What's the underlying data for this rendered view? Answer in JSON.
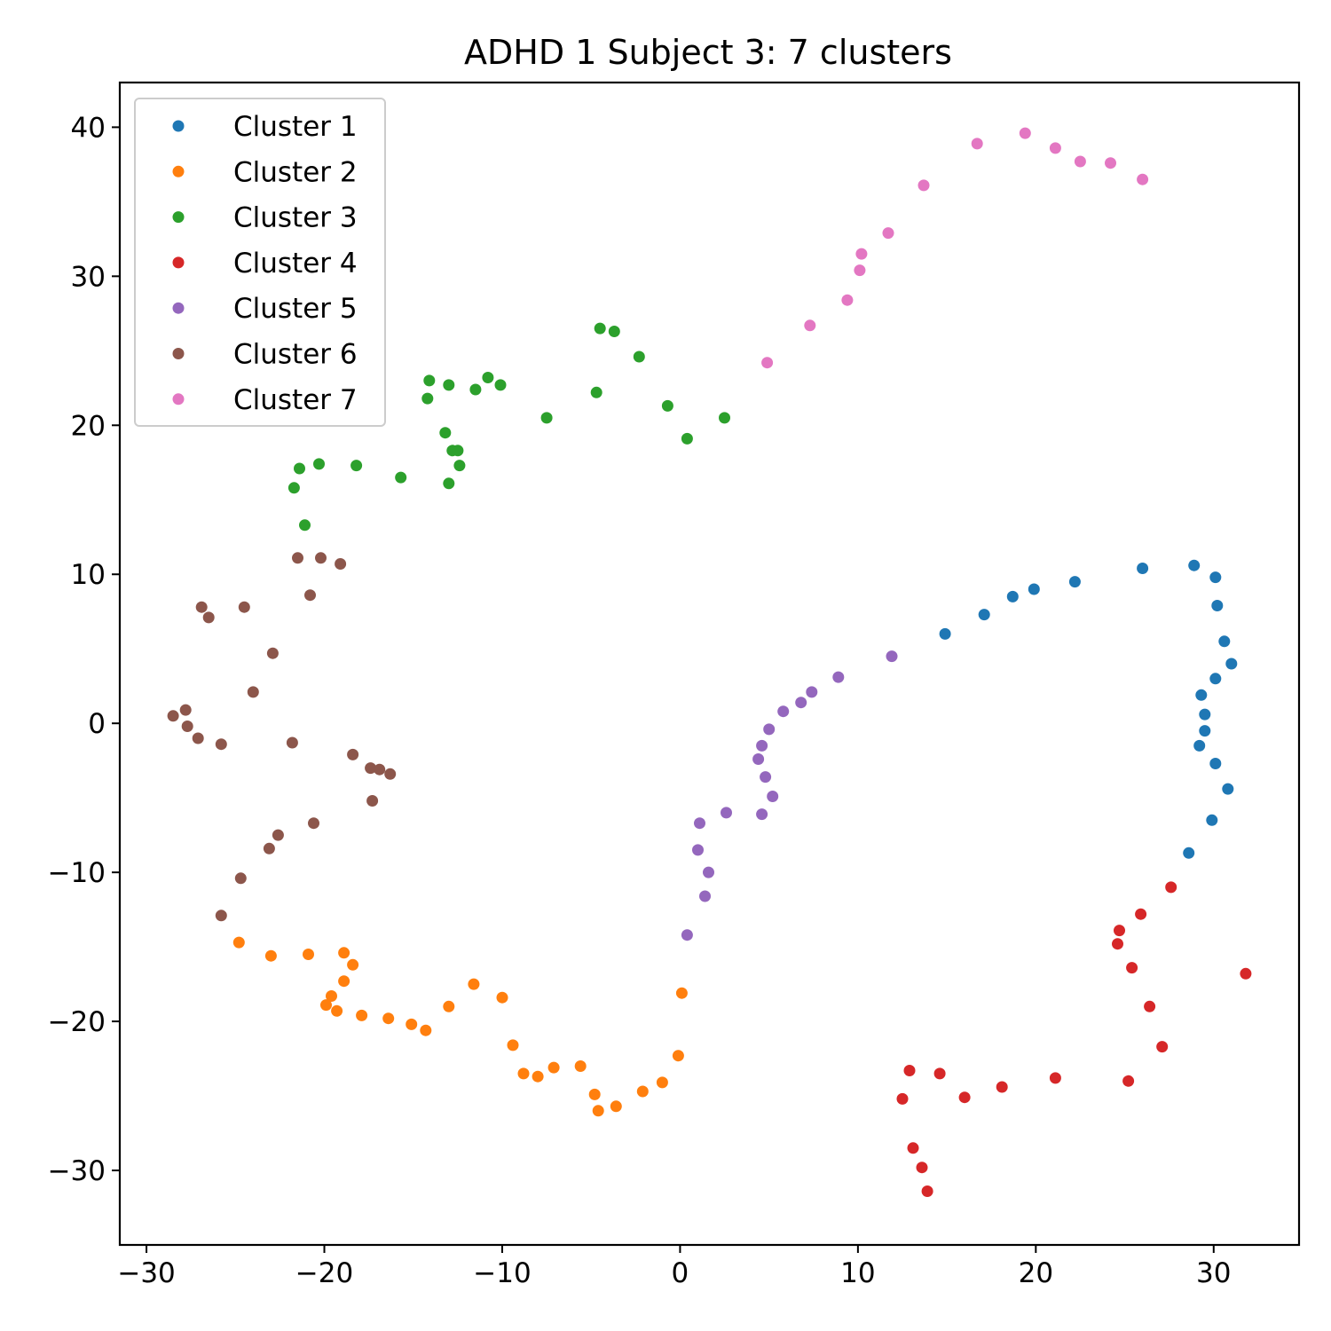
{
  "chart_data": {
    "type": "scatter",
    "title": "ADHD 1 Subject 3: 7 clusters",
    "xlabel": "",
    "ylabel": "",
    "xlim": [
      -31.5,
      34.8
    ],
    "ylim": [
      -35,
      43
    ],
    "xticks": [
      -30,
      -20,
      -10,
      0,
      10,
      20,
      30
    ],
    "yticks": [
      -30,
      -20,
      -10,
      0,
      10,
      20,
      30,
      40
    ],
    "xtick_labels": [
      "−30",
      "−20",
      "−10",
      "0",
      "10",
      "20",
      "30"
    ],
    "ytick_labels": [
      "−30",
      "−20",
      "−10",
      "0",
      "10",
      "20",
      "30",
      "40"
    ],
    "grid": false,
    "legend_position": "upper-left",
    "series": [
      {
        "name": "Cluster 1",
        "color": "#1f77b4",
        "points": [
          [
            26.0,
            10.4
          ],
          [
            28.9,
            10.6
          ],
          [
            30.1,
            9.8
          ],
          [
            22.2,
            9.5
          ],
          [
            19.9,
            9.0
          ],
          [
            18.7,
            8.5
          ],
          [
            30.2,
            7.9
          ],
          [
            17.1,
            7.3
          ],
          [
            14.9,
            6.0
          ],
          [
            30.6,
            5.5
          ],
          [
            31.0,
            4.0
          ],
          [
            30.1,
            3.0
          ],
          [
            29.3,
            1.9
          ],
          [
            29.5,
            0.6
          ],
          [
            29.5,
            -0.5
          ],
          [
            29.2,
            -1.5
          ],
          [
            30.1,
            -2.7
          ],
          [
            30.8,
            -4.4
          ],
          [
            29.9,
            -6.5
          ],
          [
            28.6,
            -8.7
          ]
        ]
      },
      {
        "name": "Cluster 2",
        "color": "#ff7f0e",
        "points": [
          [
            -24.8,
            -14.7
          ],
          [
            -23.0,
            -15.6
          ],
          [
            -20.9,
            -15.5
          ],
          [
            -18.9,
            -15.4
          ],
          [
            -18.4,
            -16.2
          ],
          [
            -18.9,
            -17.3
          ],
          [
            -11.6,
            -17.5
          ],
          [
            -19.6,
            -18.3
          ],
          [
            -19.9,
            -18.9
          ],
          [
            -19.3,
            -19.3
          ],
          [
            -17.9,
            -19.6
          ],
          [
            -13.0,
            -19.0
          ],
          [
            -10.0,
            -18.4
          ],
          [
            0.1,
            -18.1
          ],
          [
            -16.4,
            -19.8
          ],
          [
            -15.1,
            -20.2
          ],
          [
            -14.3,
            -20.6
          ],
          [
            -9.4,
            -21.6
          ],
          [
            -0.1,
            -22.3
          ],
          [
            -5.6,
            -23.0
          ],
          [
            -7.1,
            -23.1
          ],
          [
            -8.8,
            -23.5
          ],
          [
            -8.0,
            -23.7
          ],
          [
            -1.0,
            -24.1
          ],
          [
            -2.1,
            -24.7
          ],
          [
            -4.8,
            -24.9
          ],
          [
            -3.6,
            -25.7
          ],
          [
            -4.6,
            -26.0
          ]
        ]
      },
      {
        "name": "Cluster 3",
        "color": "#2ca02c",
        "points": [
          [
            -4.5,
            26.5
          ],
          [
            -3.7,
            26.3
          ],
          [
            -2.3,
            24.6
          ],
          [
            -10.8,
            23.2
          ],
          [
            -14.1,
            23.0
          ],
          [
            -13.0,
            22.7
          ],
          [
            -10.1,
            22.7
          ],
          [
            -11.5,
            22.4
          ],
          [
            -4.7,
            22.2
          ],
          [
            -14.2,
            21.8
          ],
          [
            -0.7,
            21.3
          ],
          [
            -7.5,
            20.5
          ],
          [
            2.5,
            20.5
          ],
          [
            -13.2,
            19.5
          ],
          [
            0.4,
            19.1
          ],
          [
            -12.8,
            18.3
          ],
          [
            -12.5,
            18.3
          ],
          [
            -20.3,
            17.4
          ],
          [
            -18.2,
            17.3
          ],
          [
            -12.4,
            17.3
          ],
          [
            -21.4,
            17.1
          ],
          [
            -15.7,
            16.5
          ],
          [
            -13.0,
            16.1
          ],
          [
            -21.7,
            15.8
          ],
          [
            -21.1,
            13.3
          ]
        ]
      },
      {
        "name": "Cluster 4",
        "color": "#d62728",
        "points": [
          [
            27.6,
            -11.0
          ],
          [
            25.9,
            -12.8
          ],
          [
            24.7,
            -13.9
          ],
          [
            24.6,
            -14.8
          ],
          [
            31.8,
            -16.8
          ],
          [
            25.4,
            -16.4
          ],
          [
            26.4,
            -19.0
          ],
          [
            27.1,
            -21.7
          ],
          [
            12.9,
            -23.3
          ],
          [
            14.6,
            -23.5
          ],
          [
            21.1,
            -23.8
          ],
          [
            25.2,
            -24.0
          ],
          [
            18.1,
            -24.4
          ],
          [
            16.0,
            -25.1
          ],
          [
            12.5,
            -25.2
          ],
          [
            13.1,
            -28.5
          ],
          [
            13.6,
            -29.8
          ],
          [
            13.9,
            -31.4
          ]
        ]
      },
      {
        "name": "Cluster 5",
        "color": "#9467bd",
        "points": [
          [
            11.9,
            4.5
          ],
          [
            8.9,
            3.1
          ],
          [
            7.4,
            2.1
          ],
          [
            6.8,
            1.4
          ],
          [
            5.8,
            0.8
          ],
          [
            5.0,
            -0.4
          ],
          [
            4.6,
            -1.5
          ],
          [
            4.4,
            -2.4
          ],
          [
            4.8,
            -3.6
          ],
          [
            5.2,
            -4.9
          ],
          [
            2.6,
            -6.0
          ],
          [
            4.6,
            -6.1
          ],
          [
            1.1,
            -6.7
          ],
          [
            1.0,
            -8.5
          ],
          [
            1.6,
            -10.0
          ],
          [
            1.4,
            -11.6
          ],
          [
            0.4,
            -14.2
          ]
        ]
      },
      {
        "name": "Cluster 6",
        "color": "#8c564b",
        "points": [
          [
            -21.5,
            11.1
          ],
          [
            -20.2,
            11.1
          ],
          [
            -19.1,
            10.7
          ],
          [
            -20.8,
            8.6
          ],
          [
            -26.9,
            7.8
          ],
          [
            -24.5,
            7.8
          ],
          [
            -26.5,
            7.1
          ],
          [
            -22.9,
            4.7
          ],
          [
            -24.0,
            2.1
          ],
          [
            -27.8,
            0.9
          ],
          [
            -28.5,
            0.5
          ],
          [
            -27.7,
            -0.2
          ],
          [
            -27.1,
            -1.0
          ],
          [
            -25.8,
            -1.4
          ],
          [
            -21.8,
            -1.3
          ],
          [
            -18.4,
            -2.1
          ],
          [
            -17.4,
            -3.0
          ],
          [
            -16.9,
            -3.1
          ],
          [
            -16.3,
            -3.4
          ],
          [
            -17.3,
            -5.2
          ],
          [
            -20.6,
            -6.7
          ],
          [
            -22.6,
            -7.5
          ],
          [
            -23.1,
            -8.4
          ],
          [
            -24.7,
            -10.4
          ],
          [
            -25.8,
            -12.9
          ]
        ]
      },
      {
        "name": "Cluster 7",
        "color": "#e377c2",
        "points": [
          [
            19.4,
            39.6
          ],
          [
            16.7,
            38.9
          ],
          [
            21.1,
            38.6
          ],
          [
            22.5,
            37.7
          ],
          [
            24.2,
            37.6
          ],
          [
            26.0,
            36.5
          ],
          [
            13.7,
            36.1
          ],
          [
            11.7,
            32.9
          ],
          [
            10.2,
            31.5
          ],
          [
            10.1,
            30.4
          ],
          [
            9.4,
            28.4
          ],
          [
            7.3,
            26.7
          ],
          [
            4.9,
            24.2
          ]
        ]
      }
    ]
  }
}
